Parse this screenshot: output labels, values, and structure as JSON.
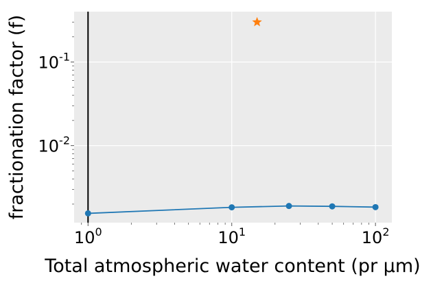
{
  "chart_data": {
    "type": "line",
    "xlabel": "Total atmospheric water content (pr μm)",
    "ylabel": "fractionation factor (f)",
    "xscale": "log",
    "yscale": "log",
    "xlim": [
      0.8,
      130
    ],
    "ylim": [
      0.0012,
      0.4
    ],
    "grid": true,
    "x_ticks": [
      {
        "base": "10",
        "exp": "0",
        "value": 1
      },
      {
        "base": "10",
        "exp": "1",
        "value": 10
      },
      {
        "base": "10",
        "exp": "2",
        "value": 100
      }
    ],
    "y_ticks": [
      {
        "base": "10",
        "exp": "-2",
        "value": 0.01
      },
      {
        "base": "10",
        "exp": "-1",
        "value": 0.1
      }
    ],
    "series": [
      {
        "type": "line",
        "marker": "circle",
        "color": "#1f77b4",
        "x": [
          1,
          10,
          25,
          50,
          100
        ],
        "y": [
          0.00155,
          0.00183,
          0.0019,
          0.00188,
          0.00184
        ]
      },
      {
        "type": "scatter",
        "marker": "star",
        "color": "#ff7f0e",
        "x": [
          15
        ],
        "y": [
          0.3
        ]
      }
    ],
    "vlines": [
      {
        "x": 1,
        "color": "#000000"
      }
    ]
  }
}
